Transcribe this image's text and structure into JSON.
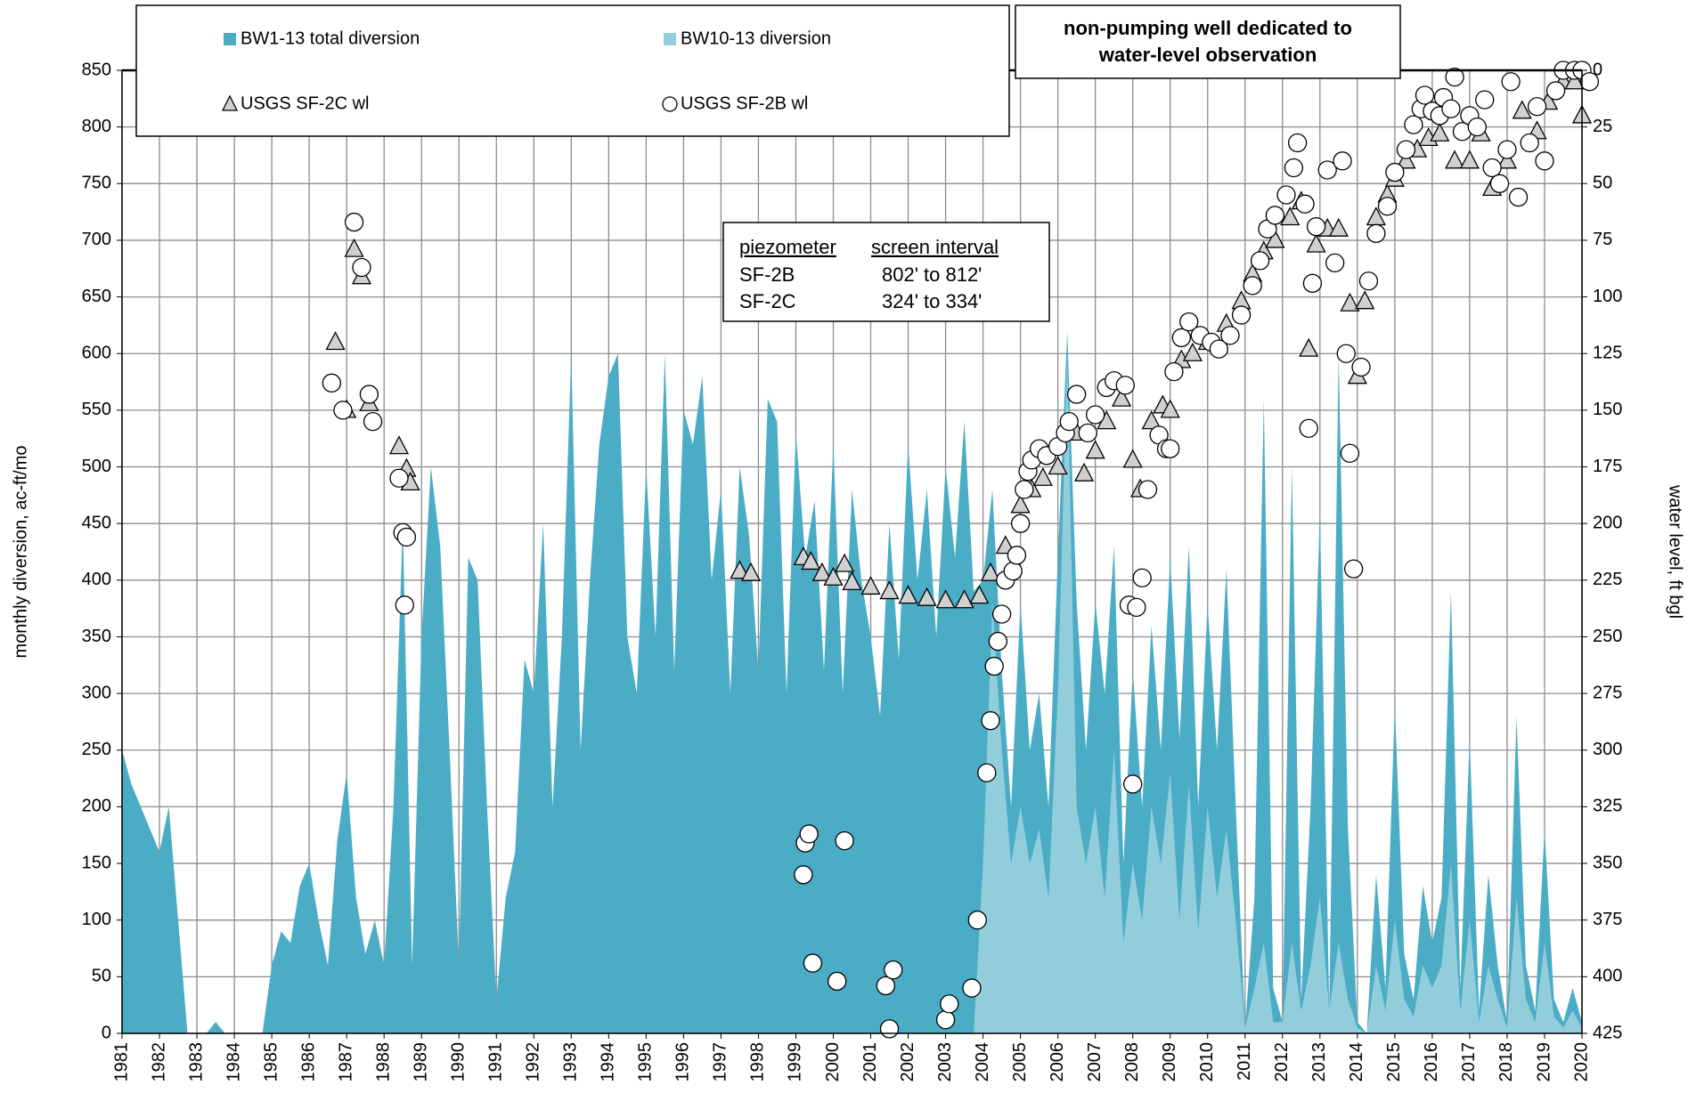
{
  "chart_data": {
    "type": "combo",
    "y_label": "monthly diversion, ac-ft/mo",
    "y2_label": "water level, ft bgl",
    "annotation": [
      "non-pumping well dedicated to",
      "water-level observation"
    ],
    "inset_table": {
      "header": [
        "piezometer",
        "screen interval"
      ],
      "rows": [
        [
          "SF-2B",
          "802' to 812'"
        ],
        [
          "SF-2C",
          "324' to 334'"
        ]
      ]
    },
    "grid": true,
    "xlim": [
      1981,
      2020
    ],
    "xticks": [
      1981,
      1982,
      1983,
      1984,
      1985,
      1986,
      1987,
      1988,
      1989,
      1990,
      1991,
      1992,
      1993,
      1994,
      1995,
      1996,
      1997,
      1998,
      1999,
      2000,
      2001,
      2002,
      2003,
      2004,
      2005,
      2006,
      2007,
      2008,
      2009,
      2010,
      2011,
      2012,
      2013,
      2014,
      2015,
      2016,
      2017,
      2018,
      2019,
      2020
    ],
    "ylim": [
      0,
      850
    ],
    "yticks": [
      0,
      50,
      100,
      150,
      200,
      250,
      300,
      350,
      400,
      450,
      500,
      550,
      600,
      650,
      700,
      750,
      800,
      850
    ],
    "y2lim": [
      425,
      0
    ],
    "y2ticks": [
      0,
      25,
      50,
      75,
      100,
      125,
      150,
      175,
      200,
      225,
      250,
      275,
      300,
      325,
      350,
      375,
      400,
      425
    ],
    "x": [
      1981,
      1981.25,
      1981.5,
      1981.75,
      1982,
      1982.25,
      1982.5,
      1982.75,
      1983,
      1983.25,
      1983.5,
      1983.75,
      1984,
      1984.25,
      1984.5,
      1984.75,
      1985,
      1985.25,
      1985.5,
      1985.75,
      1986,
      1986.25,
      1986.5,
      1986.75,
      1987,
      1987.25,
      1987.5,
      1987.75,
      1988,
      1988.25,
      1988.5,
      1988.75,
      1989,
      1989.25,
      1989.5,
      1989.75,
      1990,
      1990.25,
      1990.5,
      1990.75,
      1991,
      1991.25,
      1991.5,
      1991.75,
      1992,
      1992.25,
      1992.5,
      1992.75,
      1993,
      1993.25,
      1993.5,
      1993.75,
      1994,
      1994.25,
      1994.5,
      1994.75,
      1995,
      1995.25,
      1995.5,
      1995.75,
      1996,
      1996.25,
      1996.5,
      1996.75,
      1997,
      1997.25,
      1997.5,
      1997.75,
      1998,
      1998.25,
      1998.5,
      1998.75,
      1999,
      1999.25,
      1999.5,
      1999.75,
      2000,
      2000.25,
      2000.5,
      2000.75,
      2001,
      2001.25,
      2001.5,
      2001.75,
      2002,
      2002.25,
      2002.5,
      2002.75,
      2003,
      2003.25,
      2003.5,
      2003.75,
      2004,
      2004.25,
      2004.5,
      2004.75,
      2005,
      2005.25,
      2005.5,
      2005.75,
      2006,
      2006.25,
      2006.5,
      2006.75,
      2007,
      2007.25,
      2007.5,
      2007.75,
      2008,
      2008.25,
      2008.5,
      2008.75,
      2009,
      2009.25,
      2009.5,
      2009.75,
      2010,
      2010.25,
      2010.5,
      2010.75,
      2011,
      2011.25,
      2011.5,
      2011.75,
      2012,
      2012.25,
      2012.5,
      2012.75,
      2013,
      2013.25,
      2013.5,
      2013.75,
      2014,
      2014.25,
      2014.5,
      2014.75,
      2015,
      2015.25,
      2015.5,
      2015.75,
      2016,
      2016.25,
      2016.5,
      2016.75,
      2017,
      2017.25,
      2017.5,
      2017.75,
      2018,
      2018.25,
      2018.5,
      2018.75,
      2019,
      2019.25,
      2019.5,
      2019.75,
      2020
    ],
    "series": [
      {
        "name": "BW1-13 total diversion",
        "type": "area",
        "color": "#4bacc6",
        "values": [
          250,
          220,
          200,
          180,
          160,
          200,
          100,
          0,
          0,
          0,
          10,
          0,
          0,
          0,
          0,
          0,
          60,
          90,
          80,
          130,
          150,
          100,
          60,
          170,
          230,
          120,
          70,
          100,
          60,
          200,
          450,
          60,
          350,
          500,
          430,
          250,
          60,
          420,
          400,
          200,
          30,
          120,
          160,
          330,
          300,
          450,
          200,
          350,
          600,
          250,
          400,
          520,
          580,
          600,
          350,
          300,
          500,
          350,
          600,
          320,
          550,
          520,
          580,
          400,
          480,
          300,
          500,
          440,
          320,
          560,
          540,
          300,
          530,
          420,
          470,
          320,
          520,
          300,
          480,
          400,
          350,
          280,
          450,
          330,
          520,
          400,
          480,
          350,
          500,
          420,
          540,
          390,
          400,
          480,
          320,
          200,
          380,
          250,
          300,
          200,
          420,
          620,
          380,
          250,
          380,
          300,
          430,
          150,
          320,
          200,
          360,
          250,
          420,
          260,
          430,
          200,
          380,
          250,
          410,
          200,
          5,
          120,
          560,
          40,
          10,
          500,
          30,
          200,
          460,
          20,
          600,
          180,
          10,
          0,
          140,
          40,
          290,
          70,
          30,
          130,
          80,
          120,
          390,
          40,
          260,
          20,
          140,
          60,
          10,
          280,
          60,
          20,
          180,
          30,
          10,
          40,
          10
        ]
      },
      {
        "name": "BW10-13 diversion",
        "type": "area",
        "color": "#92cddc",
        "values": [
          0,
          0,
          0,
          0,
          0,
          0,
          0,
          0,
          0,
          0,
          0,
          0,
          0,
          0,
          0,
          0,
          0,
          0,
          0,
          0,
          0,
          0,
          0,
          0,
          0,
          0,
          0,
          0,
          0,
          0,
          0,
          0,
          0,
          0,
          0,
          0,
          0,
          0,
          0,
          0,
          0,
          0,
          0,
          0,
          0,
          0,
          0,
          0,
          0,
          0,
          0,
          0,
          0,
          0,
          0,
          0,
          0,
          0,
          0,
          0,
          0,
          0,
          0,
          0,
          0,
          0,
          0,
          0,
          0,
          0,
          0,
          0,
          0,
          0,
          0,
          0,
          0,
          0,
          0,
          0,
          0,
          0,
          0,
          0,
          0,
          0,
          0,
          0,
          0,
          0,
          0,
          0,
          150,
          380,
          250,
          150,
          200,
          150,
          180,
          120,
          300,
          600,
          200,
          150,
          200,
          120,
          250,
          80,
          150,
          100,
          200,
          150,
          230,
          100,
          220,
          90,
          200,
          120,
          180,
          100,
          5,
          40,
          80,
          10,
          10,
          80,
          20,
          60,
          120,
          20,
          80,
          30,
          5,
          0,
          60,
          20,
          100,
          30,
          15,
          60,
          40,
          60,
          150,
          20,
          100,
          10,
          60,
          30,
          5,
          120,
          30,
          10,
          80,
          15,
          5,
          20,
          5
        ]
      },
      {
        "name": "USGS SF-2C wl",
        "type": "scatter",
        "marker": "triangle",
        "axis": "y2",
        "color": "#d0d0d0",
        "x": [
          1986.7,
          1987.0,
          1987.2,
          1987.4,
          1987.6,
          1988.4,
          1988.6,
          1988.7,
          1997.5,
          1997.8,
          1999.2,
          1999.4,
          1999.7,
          2000.0,
          2000.3,
          2000.5,
          2001.0,
          2001.5,
          2002.0,
          2002.5,
          2003.0,
          2003.5,
          2003.9,
          2004.2,
          2004.6,
          2005.0,
          2005.3,
          2005.6,
          2006.0,
          2006.5,
          2006.7,
          2007.0,
          2007.3,
          2007.7,
          2008.0,
          2008.2,
          2008.5,
          2008.8,
          2009.0,
          2009.3,
          2009.6,
          2010.0,
          2010.5,
          2010.9,
          2011.2,
          2011.5,
          2011.8,
          2012.2,
          2012.5,
          2012.7,
          2012.9,
          2013.2,
          2013.5,
          2013.8,
          2014.0,
          2014.2,
          2014.5,
          2014.8,
          2015.0,
          2015.3,
          2015.6,
          2015.9,
          2016.2,
          2016.6,
          2017.0,
          2017.3,
          2017.6,
          2018.0,
          2018.4,
          2018.8,
          2019.1,
          2019.5,
          2019.8,
          2020.0
        ],
        "values": [
          120,
          150,
          79,
          91,
          147,
          166,
          176,
          182,
          221,
          222,
          215,
          217,
          222,
          224,
          218,
          226,
          228,
          230,
          232,
          233,
          234,
          234,
          232,
          222,
          210,
          192,
          185,
          180,
          175,
          160,
          178,
          168,
          155,
          145,
          172,
          185,
          155,
          148,
          150,
          128,
          125,
          120,
          112,
          102,
          90,
          80,
          75,
          65,
          58,
          123,
          77,
          70,
          70,
          103,
          135,
          102,
          65,
          55,
          48,
          40,
          35,
          30,
          28,
          40,
          40,
          28,
          52,
          40,
          18,
          27,
          14,
          5,
          5,
          20
        ]
      },
      {
        "name": "USGS SF-2B wl",
        "type": "scatter",
        "marker": "circle",
        "axis": "y2",
        "color": "#ffffff",
        "x": [
          1986.6,
          1986.9,
          1987.2,
          1987.4,
          1987.6,
          1987.7,
          1988.4,
          1988.5,
          1988.6,
          1988.55,
          1999.2,
          1999.25,
          1999.35,
          1999.45,
          2000.1,
          2000.3,
          2001.4,
          2001.5,
          2001.6,
          2003.0,
          2003.1,
          2003.7,
          2003.85,
          2004.1,
          2004.2,
          2004.3,
          2004.4,
          2004.5,
          2004.6,
          2004.8,
          2004.9,
          2005.0,
          2005.1,
          2005.2,
          2005.3,
          2005.5,
          2005.7,
          2006.0,
          2006.2,
          2006.3,
          2006.5,
          2006.8,
          2007.0,
          2007.3,
          2007.5,
          2007.8,
          2007.9,
          2008.1,
          2008.25,
          2008.4,
          2008.0,
          2008.7,
          2008.9,
          2009.0,
          2009.1,
          2009.3,
          2009.5,
          2009.8,
          2010.1,
          2010.3,
          2010.6,
          2010.9,
          2011.2,
          2011.4,
          2011.6,
          2011.8,
          2012.1,
          2012.3,
          2012.4,
          2012.6,
          2012.7,
          2012.8,
          2012.9,
          2013.2,
          2013.4,
          2013.6,
          2013.7,
          2013.8,
          2013.9,
          2014.1,
          2014.3,
          2014.5,
          2014.8,
          2015.0,
          2015.3,
          2015.5,
          2015.7,
          2015.8,
          2016.0,
          2016.2,
          2016.3,
          2016.5,
          2016.6,
          2016.8,
          2017.0,
          2017.2,
          2017.4,
          2017.6,
          2017.8,
          2018.0,
          2018.1,
          2018.3,
          2018.6,
          2018.8,
          2019.0,
          2019.3,
          2019.5,
          2019.8,
          2020.0,
          2020.2
        ],
        "values": [
          138,
          150,
          67,
          87,
          143,
          155,
          180,
          204,
          206,
          236,
          355,
          341,
          337,
          394,
          402,
          340,
          404,
          423,
          397,
          419,
          412,
          405,
          375,
          310,
          287,
          263,
          252,
          240,
          225,
          221,
          214,
          200,
          185,
          177,
          172,
          167,
          170,
          166,
          160,
          155,
          143,
          160,
          152,
          140,
          137,
          139,
          236,
          237,
          224,
          185,
          315,
          161,
          167,
          167,
          133,
          118,
          111,
          117,
          120,
          123,
          117,
          108,
          95,
          84,
          70,
          64,
          55,
          43,
          32,
          59,
          158,
          94,
          69,
          44,
          85,
          40,
          125,
          169,
          220,
          131,
          93,
          72,
          60,
          45,
          35,
          24,
          17,
          11,
          18,
          20,
          12,
          17,
          3,
          27,
          20,
          25,
          13,
          43,
          50,
          35,
          5,
          56,
          32,
          16,
          40,
          9,
          0,
          0,
          0,
          5
        ]
      }
    ]
  }
}
